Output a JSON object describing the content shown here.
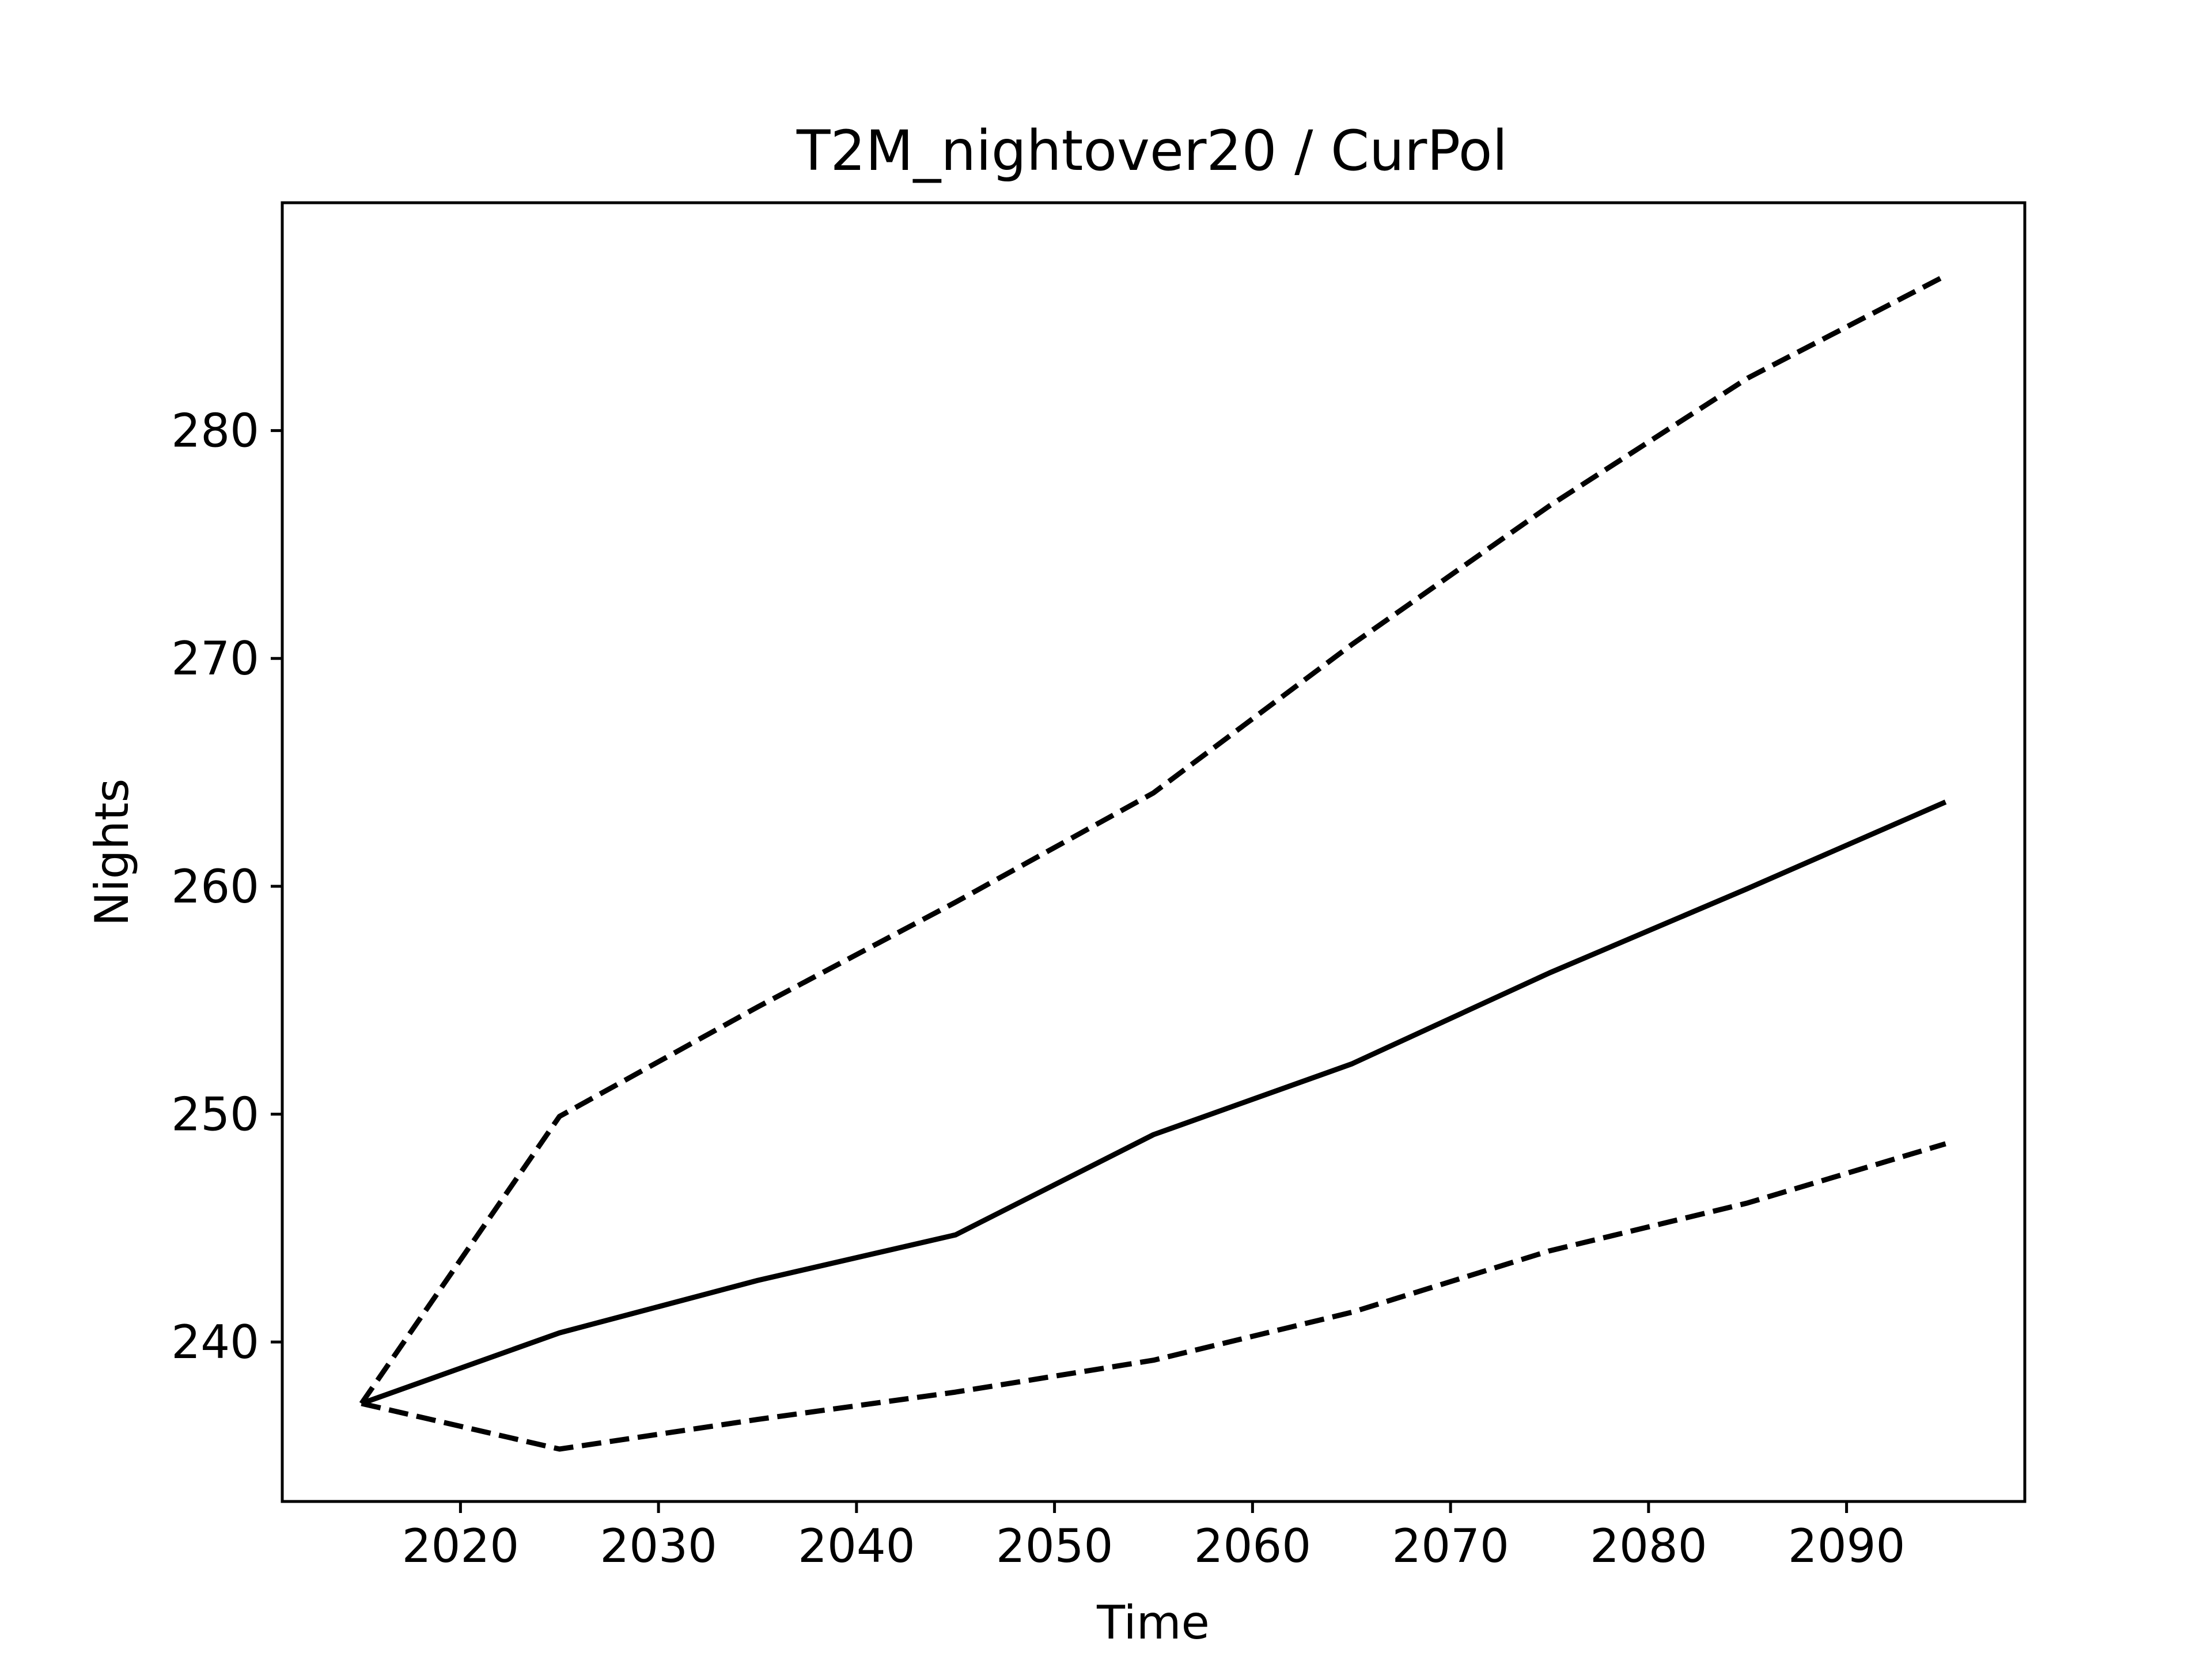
{
  "chart_data": {
    "type": "line",
    "title": "T2M_nightover20 / CurPol",
    "xlabel": "Time",
    "ylabel": "Nights",
    "xlim": [
      2011,
      2099
    ],
    "ylim": [
      233,
      290
    ],
    "xticks": [
      2020,
      2030,
      2040,
      2050,
      2060,
      2070,
      2080,
      2090
    ],
    "yticks": [
      240,
      250,
      260,
      270,
      280
    ],
    "grid": false,
    "legend": false,
    "series": [
      {
        "style": "solid",
        "color": "#000000",
        "x": [
          2015,
          2025,
          2035,
          2045,
          2055,
          2065,
          2075,
          2085,
          2095
        ],
        "y": [
          237.3,
          240.4,
          242.7,
          244.7,
          249.1,
          252.2,
          256.2,
          259.9,
          263.7
        ]
      },
      {
        "style": "dashed",
        "color": "#000000",
        "x": [
          2015,
          2025,
          2035,
          2045,
          2055,
          2065,
          2075,
          2085,
          2095
        ],
        "y": [
          237.3,
          249.9,
          254.7,
          259.3,
          264.1,
          270.6,
          276.7,
          282.3,
          286.8
        ]
      },
      {
        "style": "dashed",
        "color": "#000000",
        "x": [
          2015,
          2025,
          2035,
          2045,
          2055,
          2065,
          2075,
          2085,
          2095
        ],
        "y": [
          237.3,
          235.3,
          236.6,
          237.8,
          239.2,
          241.3,
          244.0,
          246.1,
          248.7
        ]
      }
    ]
  }
}
